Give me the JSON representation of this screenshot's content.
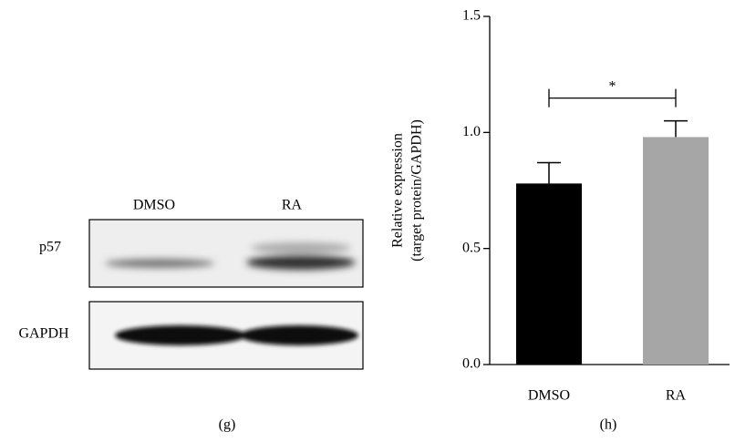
{
  "blot": {
    "lanes": [
      "DMSO",
      "RA"
    ],
    "rows": [
      "p57",
      "GAPDH"
    ],
    "caption": "(g)"
  },
  "chart_data": {
    "type": "bar",
    "caption": "(h)",
    "ylabel": [
      "Relative expression",
      "(target protein/GAPDH)"
    ],
    "categories": [
      "DMSO",
      "RA"
    ],
    "values": [
      0.78,
      0.98
    ],
    "errors": [
      0.09,
      0.07
    ],
    "colors": [
      "#000000",
      "#a6a6a6"
    ],
    "significance": "*",
    "ylim": [
      0,
      1.5
    ],
    "yticks": [
      {
        "value": 0,
        "label": "0.0"
      },
      0.5,
      {
        "value": 1,
        "label": "1.0"
      },
      1.5
    ]
  }
}
